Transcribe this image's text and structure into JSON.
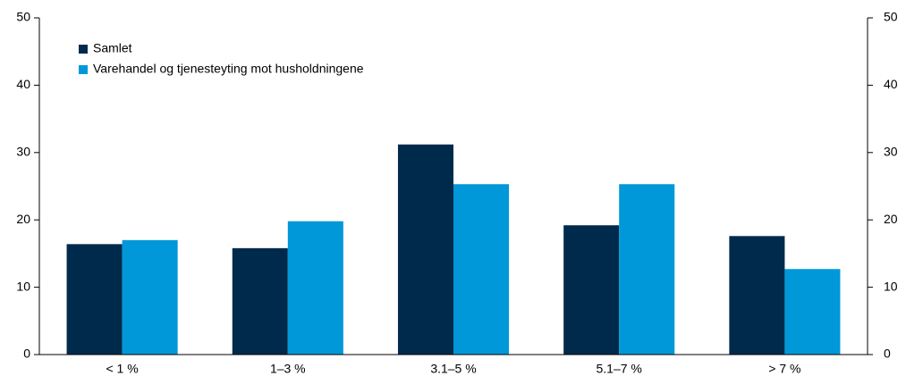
{
  "chart_data": {
    "type": "bar",
    "categories": [
      "< 1 %",
      "1–3 %",
      "3.1–5 %",
      "5.1–7 %",
      "> 7 %"
    ],
    "series": [
      {
        "name": "Samlet",
        "color": "#002a4c",
        "values": [
          16.4,
          15.8,
          31.2,
          19.2,
          17.6
        ]
      },
      {
        "name": "Varehandel og tjenesteyting mot husholdningene",
        "color": "#0098d8",
        "values": [
          17.0,
          19.8,
          25.3,
          25.3,
          12.7
        ]
      }
    ],
    "ylim": [
      0,
      50
    ],
    "yticks": [
      0,
      10,
      20,
      30,
      40,
      50
    ],
    "y2lim": [
      0,
      50
    ],
    "y2ticks": [
      0,
      10,
      20,
      30,
      40,
      50
    ],
    "legend": "upper left"
  }
}
